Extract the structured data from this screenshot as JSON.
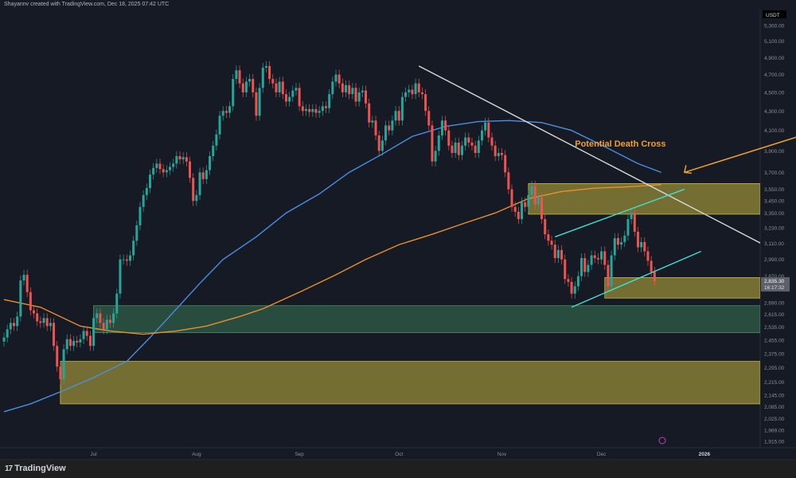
{
  "header": {
    "attribution": "Shayannv created with TradingView.com, Dec 18, 2025 07:42 UTC"
  },
  "footer": {
    "brand": "TradingView"
  },
  "colors": {
    "background": "#161a25",
    "up": "#26a69a",
    "down": "#ef5350",
    "ma_fast": "#4a8fe0",
    "ma_slow": "#e8912d",
    "trendline": "#d9d9d9",
    "channel": "#3fe0d0",
    "zone_yellow": "#8c8336",
    "zone_green": "#2f5e45",
    "annotation": "#f0a030"
  },
  "chart_data": {
    "type": "candlestick",
    "interval": "1D",
    "currency": "USDT",
    "y_scale": "log",
    "ylim": [
      1880,
      5400
    ],
    "y_ticks": [
      "5,300.00",
      "5,100.00",
      "4,900.00",
      "4,700.00",
      "4,500.00",
      "4,300.00",
      "4,100.00",
      "3,900.00",
      "3,700.00",
      "3,550.00",
      "3,450.00",
      "3,350.00",
      "3,230.00",
      "3,110.00",
      "2,990.00",
      "2,870.00",
      "2,690.00",
      "2,615.00",
      "2,535.00",
      "2,455.00",
      "2,375.00",
      "2,295.00",
      "2,215.00",
      "2,145.00",
      "2,085.00",
      "2,025.00",
      "1,969.00",
      "1,915.00"
    ],
    "x_ticks": [
      {
        "label": "Jul",
        "date": "2025-07-01"
      },
      {
        "label": "Aug",
        "date": "2025-08-01"
      },
      {
        "label": "Sep",
        "date": "2025-09-01"
      },
      {
        "label": "Oct",
        "date": "2025-10-01"
      },
      {
        "label": "Nov",
        "date": "2025-11-01"
      },
      {
        "label": "Dec",
        "date": "2025-12-01"
      },
      {
        "label": "2026",
        "date": "2026-01-01",
        "bold": true
      }
    ],
    "date_range": [
      "2025-06-04",
      "2025-12-18"
    ],
    "closes": [
      2470,
      2520,
      2560,
      2540,
      2600,
      2840,
      2880,
      2760,
      2640,
      2620,
      2570,
      2560,
      2590,
      2540,
      2560,
      2420,
      2300,
      2230,
      2400,
      2460,
      2420,
      2450,
      2440,
      2460,
      2510,
      2480,
      2420,
      2590,
      2620,
      2560,
      2520,
      2580,
      2560,
      2620,
      2750,
      2990,
      2990,
      2980,
      3020,
      3130,
      3250,
      3400,
      3500,
      3560,
      3680,
      3740,
      3780,
      3730,
      3700,
      3720,
      3750,
      3780,
      3850,
      3820,
      3840,
      3800,
      3650,
      3450,
      3500,
      3700,
      3640,
      3720,
      3850,
      3950,
      4060,
      4250,
      4300,
      4280,
      4350,
      4650,
      4750,
      4600,
      4500,
      4620,
      4650,
      4500,
      4250,
      4550,
      4780,
      4800,
      4650,
      4600,
      4500,
      4620,
      4480,
      4400,
      4450,
      4520,
      4550,
      4350,
      4300,
      4320,
      4290,
      4320,
      4280,
      4300,
      4350,
      4330,
      4480,
      4620,
      4700,
      4600,
      4500,
      4580,
      4480,
      4550,
      4400,
      4500,
      4520,
      4380,
      4180,
      4200,
      4050,
      3900,
      4000,
      4150,
      4100,
      4200,
      4300,
      4200,
      4450,
      4500,
      4530,
      4480,
      4600,
      4500,
      4480,
      4300,
      4150,
      3800,
      3900,
      4050,
      4200,
      4100,
      3950,
      3880,
      3980,
      3860,
      3950,
      4030,
      3980,
      3950,
      3880,
      4000,
      4100,
      4180,
      4030,
      3950,
      3850,
      3880,
      3860,
      3700,
      3550,
      3400,
      3360,
      3300,
      3440,
      3400,
      3500,
      3580,
      3420,
      3480,
      3300,
      3180,
      3130,
      3100,
      3000,
      3060,
      2990,
      2850,
      2830,
      2750,
      2800,
      2870,
      3000,
      2900,
      2950,
      3020,
      3000,
      2990,
      3050,
      2950,
      2800,
      3020,
      3150,
      3100,
      3120,
      3170,
      3300,
      3350,
      3200,
      3080,
      3120,
      3050,
      2980,
      2900,
      2835
    ],
    "last_price": {
      "value": "2,835.30",
      "countdown": "16:17:32"
    },
    "moving_averages": [
      {
        "color": "#4a8fe0",
        "points": [
          [
            "2025-06-04",
            2060
          ],
          [
            "2025-06-12",
            2100
          ],
          [
            "2025-06-22",
            2170
          ],
          [
            "2025-07-01",
            2240
          ],
          [
            "2025-07-11",
            2330
          ],
          [
            "2025-07-18",
            2470
          ],
          [
            "2025-07-26",
            2650
          ],
          [
            "2025-08-02",
            2820
          ],
          [
            "2025-08-09",
            2990
          ],
          [
            "2025-08-19",
            3160
          ],
          [
            "2025-08-28",
            3350
          ],
          [
            "2025-09-07",
            3510
          ],
          [
            "2025-09-16",
            3700
          ],
          [
            "2025-09-26",
            3870
          ],
          [
            "2025-10-05",
            4040
          ],
          [
            "2025-10-15",
            4140
          ],
          [
            "2025-10-25",
            4190
          ],
          [
            "2025-11-03",
            4200
          ],
          [
            "2025-11-13",
            4180
          ],
          [
            "2025-11-22",
            4100
          ],
          [
            "2025-12-02",
            3940
          ],
          [
            "2025-12-12",
            3780
          ],
          [
            "2025-12-19",
            3700
          ]
        ]
      },
      {
        "color": "#e8912d",
        "points": [
          [
            "2025-06-04",
            2710
          ],
          [
            "2025-06-15",
            2660
          ],
          [
            "2025-06-27",
            2540
          ],
          [
            "2025-07-06",
            2510
          ],
          [
            "2025-07-16",
            2490
          ],
          [
            "2025-07-26",
            2510
          ],
          [
            "2025-08-04",
            2540
          ],
          [
            "2025-08-14",
            2600
          ],
          [
            "2025-08-21",
            2650
          ],
          [
            "2025-09-02",
            2770
          ],
          [
            "2025-09-12",
            2880
          ],
          [
            "2025-09-21",
            2990
          ],
          [
            "2025-10-01",
            3100
          ],
          [
            "2025-10-11",
            3180
          ],
          [
            "2025-10-21",
            3270
          ],
          [
            "2025-10-30",
            3350
          ],
          [
            "2025-11-09",
            3470
          ],
          [
            "2025-11-19",
            3530
          ],
          [
            "2025-11-29",
            3560
          ],
          [
            "2025-12-08",
            3570
          ],
          [
            "2025-12-19",
            3590
          ]
        ]
      }
    ],
    "zones": [
      {
        "type": "resistance",
        "color": "yellow",
        "from": "2025-11-09",
        "price_top": 3600,
        "price_bottom": 3340
      },
      {
        "type": "support",
        "color": "yellow",
        "from": "2025-12-02",
        "price_top": 2860,
        "price_bottom": 2720
      },
      {
        "type": "support",
        "color": "green",
        "from": "2025-07-01",
        "price_top": 2670,
        "price_bottom": 2500
      },
      {
        "type": "support",
        "color": "yellow",
        "from": "2025-06-21",
        "price_top": 2330,
        "price_bottom": 2100
      }
    ],
    "lines": [
      {
        "type": "trendline",
        "color": "white",
        "from": [
          "2025-10-07",
          4800
        ],
        "to": [
          "2026-02-12",
          2800
        ]
      },
      {
        "type": "channel-lower",
        "color": "cyan",
        "from": [
          "2025-11-22",
          2660
        ],
        "to": [
          "2025-12-31",
          3050
        ]
      },
      {
        "type": "channel-upper",
        "color": "cyan",
        "from": [
          "2025-11-17",
          3160
        ],
        "to": [
          "2025-12-26",
          3550
        ]
      }
    ],
    "annotations": [
      {
        "text": "Potential Death Cross",
        "date": "2025-11-23",
        "price": 3940
      },
      {
        "type": "arrow",
        "from": [
          "2026-02-08",
          4140
        ],
        "to": [
          "2025-12-26",
          3700
        ]
      }
    ]
  }
}
